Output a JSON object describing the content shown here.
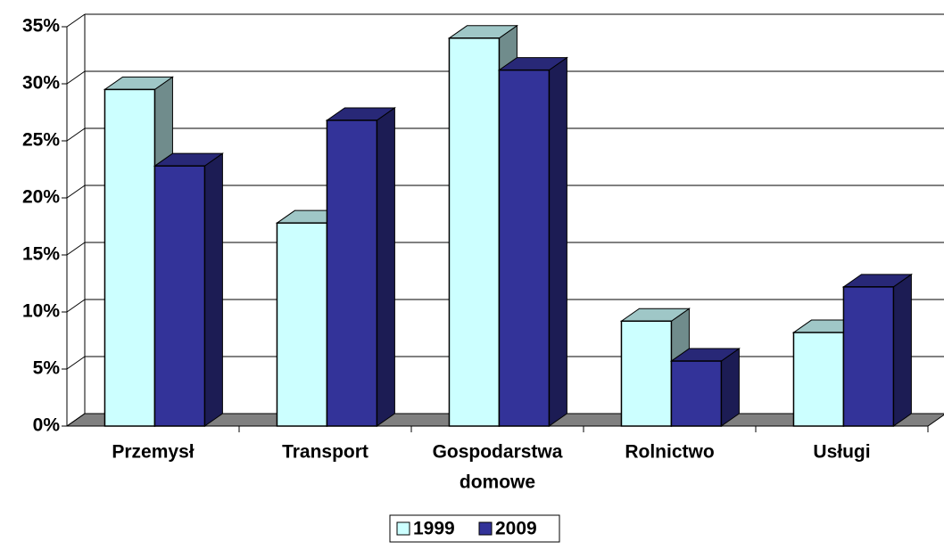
{
  "chart_data": {
    "type": "bar3d",
    "categories": [
      [
        "Przemysł"
      ],
      [
        "Transport"
      ],
      [
        "Gospodarstwa",
        "domowe"
      ],
      [
        "Rolnictwo"
      ],
      [
        "Usługi"
      ]
    ],
    "series": [
      {
        "name": "1999",
        "color": "#ccffff",
        "values": [
          29.5,
          17.8,
          34,
          9.2,
          8.2
        ]
      },
      {
        "name": "2009",
        "color": "#333399",
        "values": [
          22.8,
          26.8,
          31.2,
          5.7,
          12.2
        ]
      }
    ],
    "ylim": [
      0,
      35
    ],
    "yticks": [
      {
        "value": 0,
        "label": "0%"
      },
      {
        "value": 5,
        "label": "5%"
      },
      {
        "value": 10,
        "label": "10%"
      },
      {
        "value": 15,
        "label": "15%"
      },
      {
        "value": 20,
        "label": "20%"
      },
      {
        "value": 25,
        "label": "25%"
      },
      {
        "value": 30,
        "label": "30%"
      },
      {
        "value": 35,
        "label": "35%"
      }
    ],
    "grid": true,
    "legend": "bottom"
  }
}
